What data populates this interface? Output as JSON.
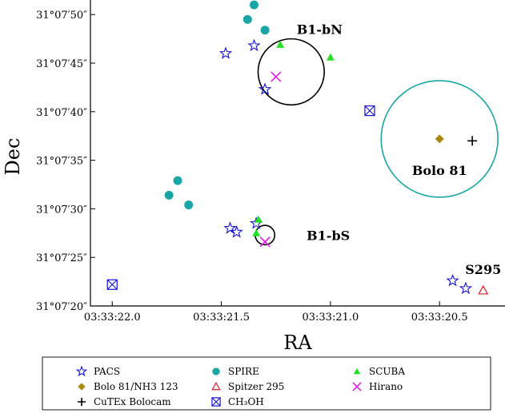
{
  "chart_data": {
    "type": "scatter",
    "title": "",
    "xlabel": "RA",
    "ylabel": "Dec",
    "x_unit": "seconds of 03h33m (RA)",
    "y_unit": "arcseconds of 31°07′ (Dec)",
    "xlim": [
      22.1,
      20.2
    ],
    "ylim": [
      20.0,
      51.5
    ],
    "x_inverted": true,
    "grid": false,
    "legend_position": "below plot",
    "x_ticks": [
      {
        "v": 22.0,
        "label": "03:33:22.0"
      },
      {
        "v": 21.5,
        "label": "03:33:21.5"
      },
      {
        "v": 21.0,
        "label": "03:33:21.0"
      },
      {
        "v": 20.5,
        "label": "03:33:20.5"
      }
    ],
    "y_ticks": [
      {
        "v": 20,
        "label": "31°07′20″"
      },
      {
        "v": 25,
        "label": "31°07′25″"
      },
      {
        "v": 30,
        "label": "31°07′30″"
      },
      {
        "v": 35,
        "label": "31°07′35″"
      },
      {
        "v": 40,
        "label": "31°07′40″"
      },
      {
        "v": 45,
        "label": "31°07′45″"
      },
      {
        "v": 50,
        "label": "31°07′50″"
      }
    ],
    "series": [
      {
        "name": "PACS",
        "marker": "star-open",
        "color": "#1414d2",
        "points": [
          [
            21.48,
            46.0
          ],
          [
            21.35,
            46.8
          ],
          [
            21.3,
            42.3
          ],
          [
            21.46,
            28.0
          ],
          [
            21.43,
            27.6
          ],
          [
            21.34,
            28.5
          ],
          [
            20.44,
            22.6
          ],
          [
            20.38,
            21.8
          ]
        ]
      },
      {
        "name": "SPIRE",
        "marker": "circle",
        "color": "#1aa6a6",
        "points": [
          [
            21.35,
            51.0
          ],
          [
            21.38,
            49.5
          ],
          [
            21.3,
            48.4
          ],
          [
            21.7,
            32.9
          ],
          [
            21.74,
            31.4
          ],
          [
            21.65,
            30.4
          ]
        ]
      },
      {
        "name": "SCUBA",
        "marker": "triangle-up",
        "color": "#22e022",
        "points": [
          [
            21.23,
            46.9
          ],
          [
            21.0,
            45.6
          ],
          [
            21.33,
            28.9
          ],
          [
            21.34,
            27.5
          ]
        ]
      },
      {
        "name": "Bolo 81/NH3 123",
        "marker": "diamond",
        "color": "#a88a0e",
        "points": [
          [
            20.5,
            37.2
          ]
        ]
      },
      {
        "name": "Spitzer 295",
        "marker": "triangle-open",
        "color": "#e02020",
        "points": [
          [
            20.3,
            21.6
          ]
        ]
      },
      {
        "name": "Hirano",
        "marker": "x",
        "color": "#e020e0",
        "points": [
          [
            21.25,
            43.6
          ],
          [
            21.3,
            26.6
          ]
        ]
      },
      {
        "name": "CuTEx Bolocam",
        "marker": "plus",
        "color": "#000000",
        "points": [
          [
            20.35,
            37.0
          ]
        ]
      },
      {
        "name": "CH₃OH",
        "marker": "square-x",
        "color": "#1414d2",
        "points": [
          [
            20.82,
            40.1
          ],
          [
            22.0,
            22.2
          ]
        ]
      }
    ],
    "circles": [
      {
        "cx": 21.18,
        "cy": 44.1,
        "r": 3.4,
        "color": "#000000"
      },
      {
        "cx": 21.3,
        "cy": 27.3,
        "r": 1.0,
        "color": "#000000"
      },
      {
        "cx": 20.5,
        "cy": 37.2,
        "r": 6.0,
        "color": "#1aa6a6"
      }
    ],
    "annotations": [
      {
        "text": "B1-bN",
        "x": 21.05,
        "y": 48.0
      },
      {
        "text": "Bolo 81",
        "x": 20.5,
        "y": 33.5
      },
      {
        "text": "B1-bS",
        "x": 21.01,
        "y": 26.8
      },
      {
        "text": "S295",
        "x": 20.3,
        "y": 23.3
      }
    ],
    "legend": [
      {
        "name": "PACS",
        "marker": "star-open",
        "color": "#1414d2"
      },
      {
        "name": "SPIRE",
        "marker": "circle",
        "color": "#1aa6a6"
      },
      {
        "name": "SCUBA",
        "marker": "triangle-up",
        "color": "#22e022"
      },
      {
        "name": "Bolo 81/NH3 123",
        "marker": "diamond",
        "color": "#a88a0e"
      },
      {
        "name": "Spitzer 295",
        "marker": "triangle-open",
        "color": "#e02020"
      },
      {
        "name": "Hirano",
        "marker": "x",
        "color": "#e020e0"
      },
      {
        "name": "CuTEx Bolocam",
        "marker": "plus",
        "color": "#000000"
      },
      {
        "name": "CH₃OH",
        "marker": "square-x",
        "color": "#1414d2"
      }
    ]
  }
}
